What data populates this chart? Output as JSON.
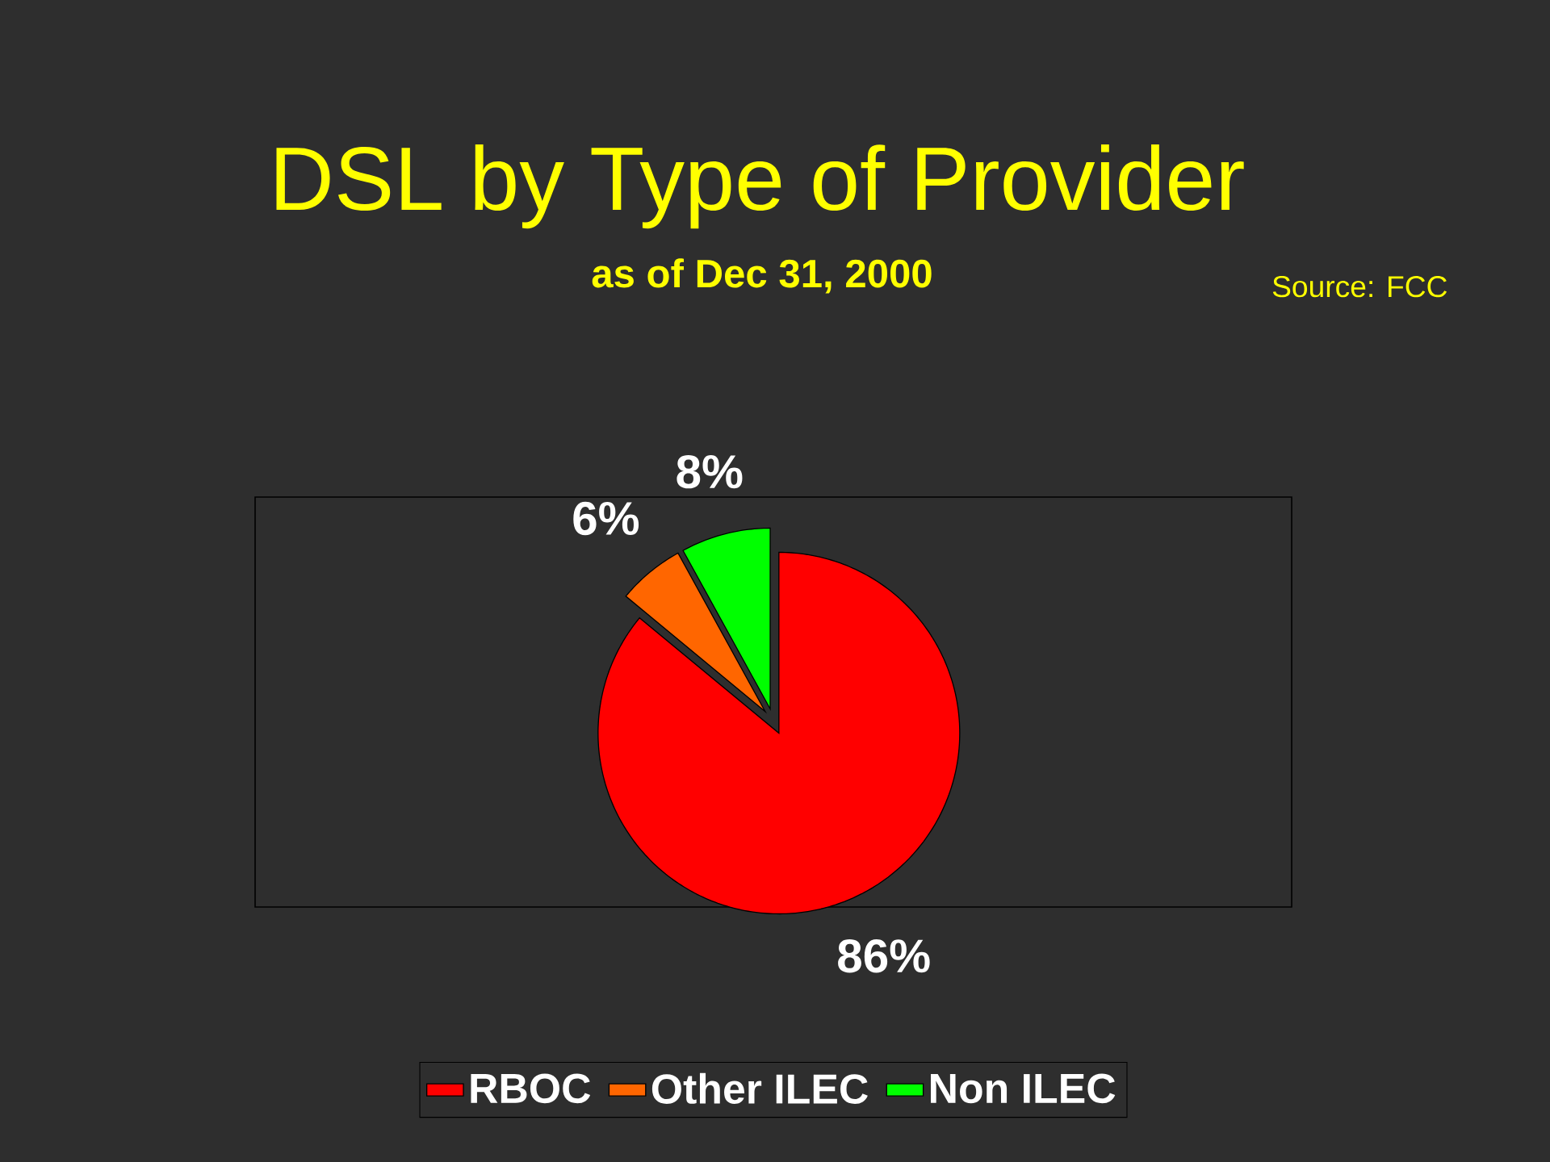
{
  "chart_data": {
    "type": "pie",
    "title": "DSL by Type of Provider",
    "subtitle": "as of Dec 31, 2000",
    "categories": [
      "RBOC",
      "Other ILEC",
      "Non ILEC"
    ],
    "values": [
      86,
      6,
      8
    ],
    "colors": [
      "#ff0000",
      "#ff6600",
      "#00ff00"
    ],
    "value_labels": [
      "86%",
      "6%",
      "8%"
    ],
    "legend": "bottom",
    "annotations": [
      "Source: FCC"
    ]
  }
}
